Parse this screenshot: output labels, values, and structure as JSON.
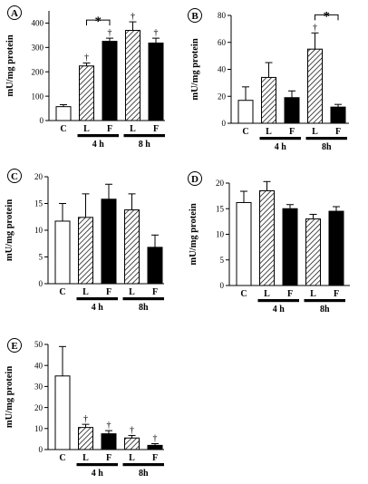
{
  "figure": {
    "colors": {
      "open": "#ffffff",
      "fed": "#000000",
      "stroke": "#000000"
    },
    "hatch_pattern": "diagonal-stripes"
  },
  "chart_data": [
    {
      "panel": "A",
      "type": "bar",
      "categories": [
        "C",
        "L",
        "F",
        "L",
        "F"
      ],
      "groups": [
        {
          "label": "4 h",
          "from": 1,
          "to": 2
        },
        {
          "label": "8 h",
          "from": 3,
          "to": 4
        }
      ],
      "fills": [
        "open",
        "hatch",
        "fed",
        "hatch",
        "fed"
      ],
      "values": [
        57,
        224,
        325,
        370,
        318
      ],
      "errors": [
        8,
        12,
        13,
        35,
        20
      ],
      "markers": [
        "",
        "†",
        "†",
        "†",
        "†"
      ],
      "significance": {
        "from": 1,
        "to": 2,
        "label": "*"
      },
      "ylabel": "mU/mg protein",
      "ylim": [
        0,
        450
      ],
      "yticks": [
        "0",
        "100",
        "200",
        "300",
        "400"
      ]
    },
    {
      "panel": "B",
      "type": "bar",
      "categories": [
        "C",
        "L",
        "F",
        "L",
        "F"
      ],
      "groups": [
        {
          "label": "4 h",
          "from": 1,
          "to": 2
        },
        {
          "label": "8h",
          "from": 3,
          "to": 4
        }
      ],
      "fills": [
        "open",
        "hatch",
        "fed",
        "hatch",
        "fed"
      ],
      "values": [
        17,
        34,
        19,
        55,
        12
      ],
      "errors": [
        10,
        11,
        5,
        12,
        2
      ],
      "markers": [
        "",
        "",
        "",
        "†",
        ""
      ],
      "significance": {
        "from": 3,
        "to": 4,
        "label": "*"
      },
      "ylabel": "mU/mg protein",
      "ylim": [
        0,
        80
      ],
      "yticks": [
        "0",
        "20",
        "40",
        "60",
        "80"
      ]
    },
    {
      "panel": "C",
      "type": "bar",
      "categories": [
        "C",
        "L",
        "F",
        "L",
        "F"
      ],
      "groups": [
        {
          "label": "4 h",
          "from": 1,
          "to": 2
        },
        {
          "label": "8h",
          "from": 3,
          "to": 4
        }
      ],
      "fills": [
        "open",
        "hatch",
        "fed",
        "hatch",
        "fed"
      ],
      "values": [
        11.7,
        12.4,
        15.8,
        13.8,
        6.8
      ],
      "errors": [
        3.3,
        4.4,
        2.8,
        3.0,
        2.3
      ],
      "markers": [
        "",
        "",
        "",
        "",
        ""
      ],
      "ylabel": "mU/mg protein",
      "ylim": [
        0,
        20
      ],
      "yticks": [
        "0",
        "5",
        "10",
        "15",
        "20"
      ]
    },
    {
      "panel": "D",
      "type": "bar",
      "categories": [
        "C",
        "L",
        "F",
        "L",
        "F"
      ],
      "groups": [
        {
          "label": "4 h",
          "from": 1,
          "to": 2
        },
        {
          "label": "8h",
          "from": 3,
          "to": 4
        }
      ],
      "fills": [
        "open",
        "hatch",
        "fed",
        "hatch",
        "fed"
      ],
      "values": [
        16.2,
        18.5,
        15.0,
        13.0,
        14.5
      ],
      "errors": [
        2.2,
        1.8,
        0.8,
        0.9,
        0.9
      ],
      "markers": [
        "",
        "",
        "",
        "",
        ""
      ],
      "ylabel": "mU/mg protein",
      "ylim": [
        0,
        20
      ],
      "yticks": [
        "0",
        "5",
        "10",
        "15",
        "20"
      ]
    },
    {
      "panel": "E",
      "type": "bar",
      "categories": [
        "C",
        "L",
        "F",
        "L",
        "F"
      ],
      "groups": [
        {
          "label": "4 h",
          "from": 1,
          "to": 2
        },
        {
          "label": "8h",
          "from": 3,
          "to": 4
        }
      ],
      "fills": [
        "open",
        "hatch",
        "fed",
        "hatch",
        "fed"
      ],
      "values": [
        35,
        10.5,
        7.5,
        5.5,
        2
      ],
      "errors": [
        14,
        1.5,
        1.5,
        1.2,
        0.8
      ],
      "markers": [
        "",
        "†",
        "†",
        "†",
        "†"
      ],
      "ylabel": "mU/mg protein",
      "ylim": [
        0,
        50
      ],
      "yticks": [
        "0",
        "10",
        "20",
        "30",
        "40",
        "50"
      ]
    }
  ]
}
